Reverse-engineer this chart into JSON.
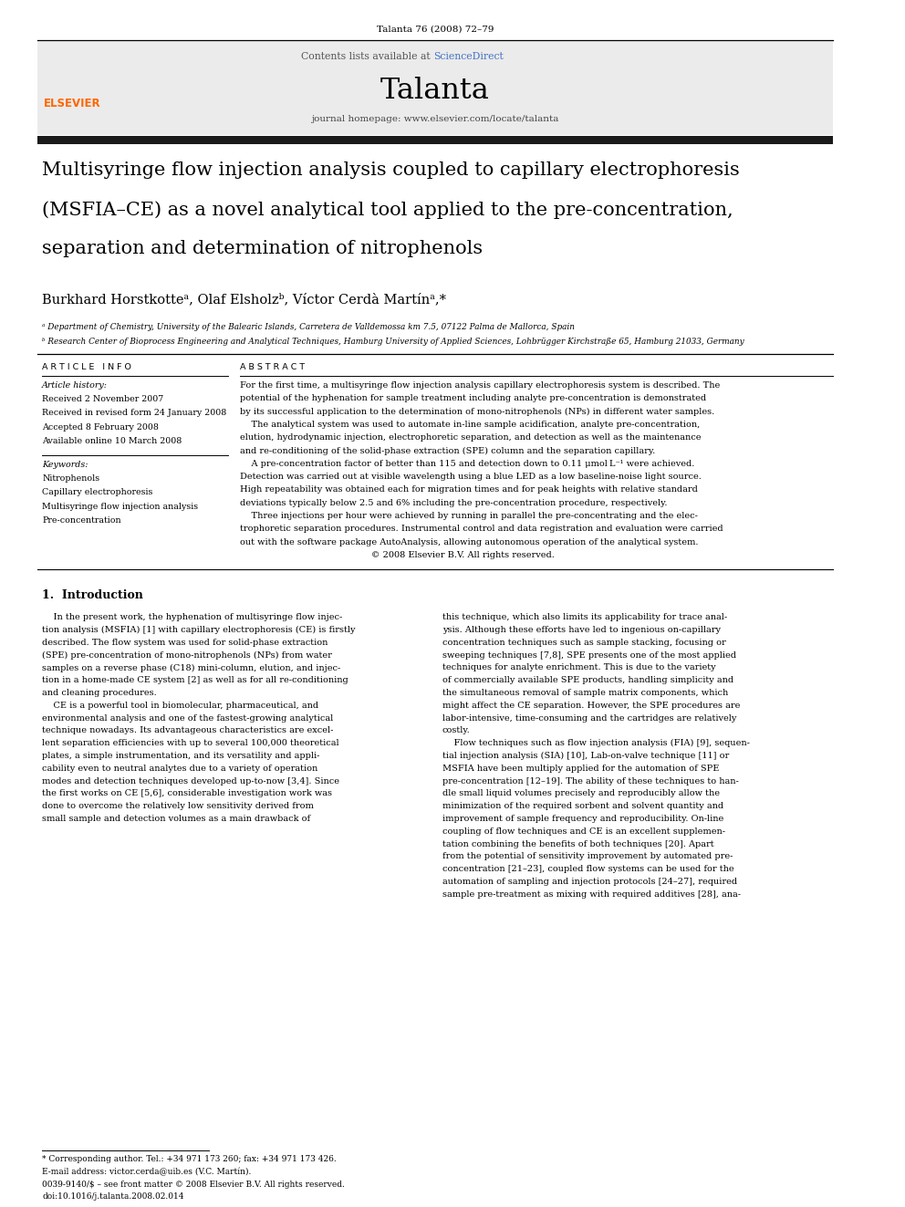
{
  "page_width": 9.92,
  "page_height": 13.23,
  "bg_color": "#ffffff",
  "journal_ref": "Talanta 76 (2008) 72–79",
  "header_bg": "#ebebeb",
  "header_sciencedirect_color": "#4472c4",
  "header_journal_name": "Talanta",
  "header_url": "journal homepage: www.elsevier.com/locate/talanta",
  "elsevier_color": "#FF6600",
  "dark_bar_color": "#1a1a1a",
  "title_line1": "Multisyringe flow injection analysis coupled to capillary electrophoresis",
  "title_line2": "(MSFIA–CE) as a novel analytical tool applied to the pre-concentration,",
  "title_line3": "separation and determination of nitrophenols",
  "authors_text": "Burkhard Horstkotteᵃ, Olaf Elsholzᵇ, Víctor Cerdà Martínᵃ,*",
  "affil_a": "ᵃ Department of Chemistry, University of the Balearic Islands, Carretera de Valldemossa km 7.5, 07122 Palma de Mallorca, Spain",
  "affil_b": "ᵇ Research Center of Bioprocess Engineering and Analytical Techniques, Hamburg University of Applied Sciences, Lohbrügger Kirchstraße 65, Hamburg 21033, Germany",
  "art_info_hdr": "A R T I C L E   I N F O",
  "abs_hdr": "A B S T R A C T",
  "art_hist_lbl": "Article history:",
  "rec1": "Received 2 November 2007",
  "rec2": "Received in revised form 24 January 2008",
  "acc": "Accepted 8 February 2008",
  "avail": "Available online 10 March 2008",
  "kw_lbl": "Keywords:",
  "kw1": "Nitrophenols",
  "kw2": "Capillary electrophoresis",
  "kw3": "Multisyringe flow injection analysis",
  "kw4": "Pre-concentration",
  "abs_lines": [
    "For the first time, a multisyringe flow injection analysis capillary electrophoresis system is described. The",
    "potential of the hyphenation for sample treatment including analyte pre-concentration is demonstrated",
    "by its successful application to the determination of mono-nitrophenols (NPs) in different water samples.",
    "    The analytical system was used to automate in-line sample acidification, analyte pre-concentration,",
    "elution, hydrodynamic injection, electrophoretic separation, and detection as well as the maintenance",
    "and re-conditioning of the solid-phase extraction (SPE) column and the separation capillary.",
    "    A pre-concentration factor of better than 115 and detection down to 0.11 μmol L⁻¹ were achieved.",
    "Detection was carried out at visible wavelength using a blue LED as a low baseline-noise light source.",
    "High repeatability was obtained each for migration times and for peak heights with relative standard",
    "deviations typically below 2.5 and 6% including the pre-concentration procedure, respectively.",
    "    Three injections per hour were achieved by running in parallel the pre-concentrating and the elec-",
    "trophoretic separation procedures. Instrumental control and data registration and evaluation were carried",
    "out with the software package AutoAnalysis, allowing autonomous operation of the analytical system.",
    "                                              © 2008 Elsevier B.V. All rights reserved."
  ],
  "s1_hdr": "1.  Introduction",
  "intro_c1_lines": [
    "    In the present work, the hyphenation of multisyringe flow injec-",
    "tion analysis (MSFIA) [1] with capillary electrophoresis (CE) is firstly",
    "described. The flow system was used for solid-phase extraction",
    "(SPE) pre-concentration of mono-nitrophenols (NPs) from water",
    "samples on a reverse phase (C18) mini-column, elution, and injec-",
    "tion in a home-made CE system [2] as well as for all re-conditioning",
    "and cleaning procedures.",
    "    CE is a powerful tool in biomolecular, pharmaceutical, and",
    "environmental analysis and one of the fastest-growing analytical",
    "technique nowadays. Its advantageous characteristics are excel-",
    "lent separation efficiencies with up to several 100,000 theoretical",
    "plates, a simple instrumentation, and its versatility and appli-",
    "cability even to neutral analytes due to a variety of operation",
    "modes and detection techniques developed up-to-now [3,4]. Since",
    "the first works on CE [5,6], considerable investigation work was",
    "done to overcome the relatively low sensitivity derived from",
    "small sample and detection volumes as a main drawback of"
  ],
  "intro_c2_lines": [
    "this technique, which also limits its applicability for trace anal-",
    "ysis. Although these efforts have led to ingenious on-capillary",
    "concentration techniques such as sample stacking, focusing or",
    "sweeping techniques [7,8], SPE presents one of the most applied",
    "techniques for analyte enrichment. This is due to the variety",
    "of commercially available SPE products, handling simplicity and",
    "the simultaneous removal of sample matrix components, which",
    "might affect the CE separation. However, the SPE procedures are",
    "labor-intensive, time-consuming and the cartridges are relatively",
    "costly.",
    "    Flow techniques such as flow injection analysis (FIA) [9], sequen-",
    "tial injection analysis (SIA) [10], Lab-on-valve technique [11] or",
    "MSFIA have been multiply applied for the automation of SPE",
    "pre-concentration [12–19]. The ability of these techniques to han-",
    "dle small liquid volumes precisely and reproducibly allow the",
    "minimization of the required sorbent and solvent quantity and",
    "improvement of sample frequency and reproducibility. On-line",
    "coupling of flow techniques and CE is an excellent supplemen-",
    "tation combining the benefits of both techniques [20]. Apart",
    "from the potential of sensitivity improvement by automated pre-",
    "concentration [21–23], coupled flow systems can be used for the",
    "automation of sampling and injection protocols [24–27], required",
    "sample pre-treatment as mixing with required additives [28], ana-"
  ],
  "footnote1": "* Corresponding author. Tel.: +34 971 173 260; fax: +34 971 173 426.",
  "footnote2": "E-mail address: victor.cerda@uib.es (V.C. Martín).",
  "issn": "0039-9140/$ – see front matter © 2008 Elsevier B.V. All rights reserved.",
  "doi": "doi:10.1016/j.talanta.2008.02.014"
}
